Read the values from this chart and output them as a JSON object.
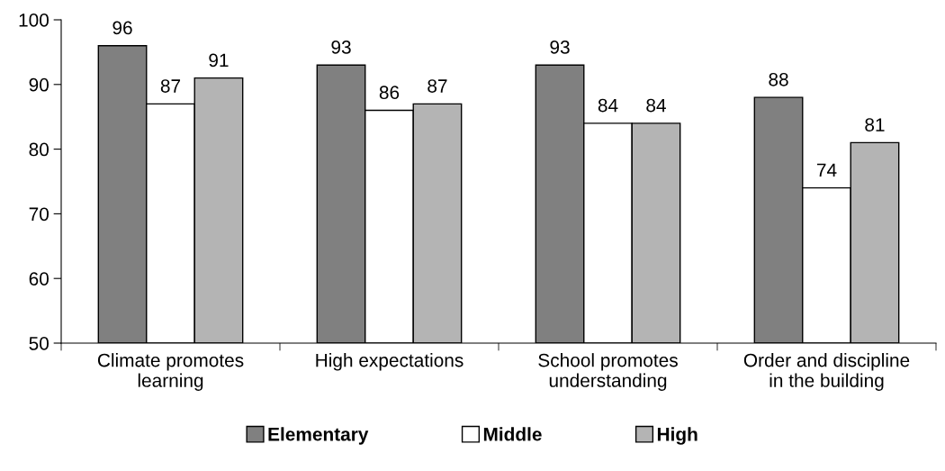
{
  "chart_data": {
    "type": "bar",
    "categories": [
      "Climate promotes\nlearning",
      "High expectations",
      "School promotes\nunderstanding",
      "Order and discipline\nin the building"
    ],
    "series": [
      {
        "name": "Elementary",
        "color": "#808080",
        "values": [
          96,
          93,
          93,
          88
        ]
      },
      {
        "name": "Middle",
        "color": "#ffffff",
        "values": [
          87,
          86,
          84,
          74
        ]
      },
      {
        "name": "High",
        "color": "#b4b4b4",
        "values": [
          91,
          87,
          84,
          81
        ]
      }
    ],
    "ylim": [
      50,
      100
    ],
    "yticks": [
      50,
      60,
      70,
      80,
      90,
      100
    ],
    "data_labels": true,
    "grid": false,
    "legend": "bottom"
  }
}
